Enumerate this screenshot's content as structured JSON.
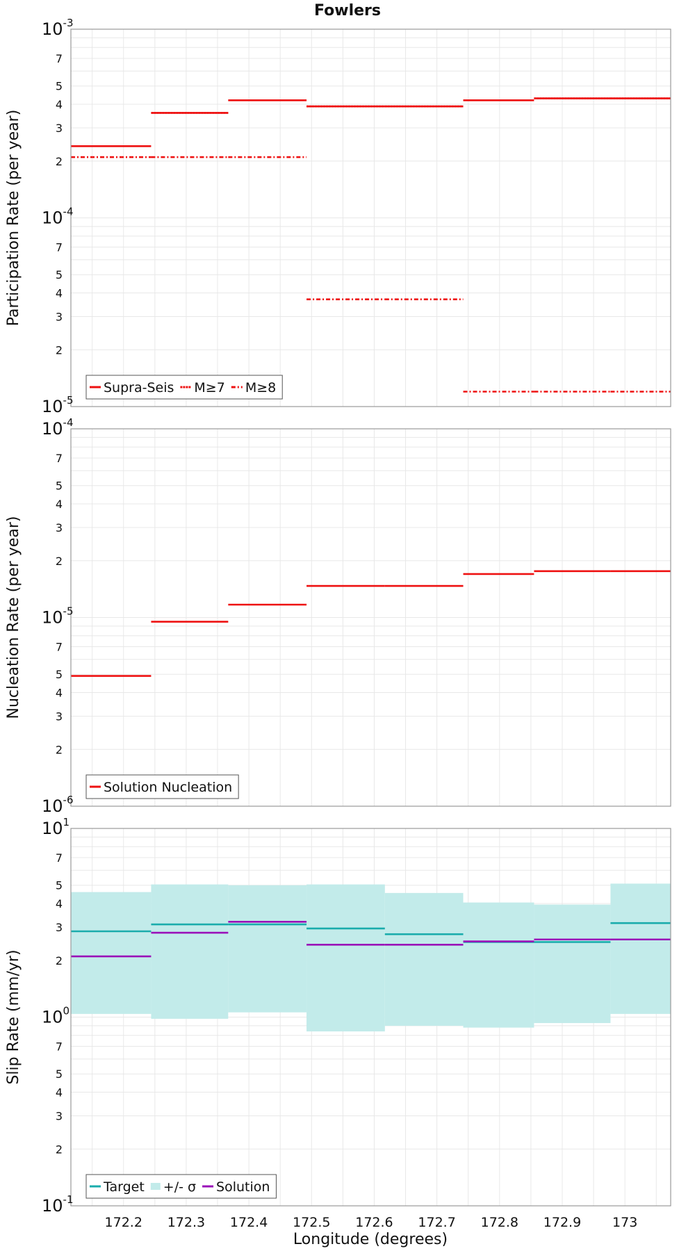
{
  "title": "Fowlers",
  "xlabel": "Longitude (degrees)",
  "x_ticks": [
    172.2,
    172.3,
    172.4,
    172.5,
    172.6,
    172.7,
    172.8,
    172.9,
    173
  ],
  "x_tick_labels": [
    "172.2",
    "172.3",
    "172.4",
    "172.5",
    "172.6",
    "172.7",
    "172.8",
    "172.9",
    "173"
  ],
  "xlim": [
    172.116,
    173.073
  ],
  "colors": {
    "red": "#ee1111",
    "teal": "#1aacac",
    "purple": "#9a10b8",
    "band": "#c2ebea",
    "grid": "#e8e8e8",
    "frame": "#999999"
  },
  "chart_data": [
    {
      "type": "line",
      "subtype": "step",
      "ylabel": "Participation Rate (per year)",
      "yscale": "log",
      "ylim": [
        1e-05,
        0.001
      ],
      "y_tick_labels": {
        "decades": [
          {
            "base": "10",
            "exp": "-5"
          },
          {
            "base": "10",
            "exp": "-4"
          },
          {
            "base": "10",
            "exp": "-3"
          }
        ],
        "minor": [
          "2",
          "3",
          "4",
          "5",
          "7"
        ]
      },
      "legend": {
        "position": "bottom-left",
        "entries": [
          {
            "label": "Supra-Seis",
            "style": "solid",
            "color": "#ee1111"
          },
          {
            "label": "M≥7",
            "style": "dotted",
            "color": "#ee1111"
          },
          {
            "label": "M≥8",
            "style": "dashdot",
            "color": "#ee1111"
          }
        ]
      },
      "series": [
        {
          "name": "Supra-Seis",
          "style": "solid",
          "color": "#ee1111",
          "segments": [
            [
              172.116,
              172.244,
              0.00024
            ],
            [
              172.244,
              172.367,
              0.00036
            ],
            [
              172.367,
              172.492,
              0.00042
            ],
            [
              172.492,
              172.617,
              0.00039
            ],
            [
              172.617,
              172.742,
              0.00039
            ],
            [
              172.742,
              172.855,
              0.00042
            ],
            [
              172.855,
              172.977,
              0.00043
            ],
            [
              172.977,
              173.073,
              0.00043
            ]
          ]
        },
        {
          "name": "M≥7",
          "style": "dotted",
          "color": "#ee1111",
          "segments": [
            [
              172.244,
              172.367,
              0.00036
            ],
            [
              172.492,
              172.617,
              0.00039
            ],
            [
              172.617,
              172.742,
              0.00039
            ],
            [
              172.855,
              172.977,
              0.00043
            ],
            [
              172.977,
              173.073,
              0.00043
            ]
          ]
        },
        {
          "name": "M≥8",
          "style": "dashdot",
          "color": "#ee1111",
          "segments": [
            [
              172.116,
              172.244,
              0.00021
            ],
            [
              172.244,
              172.367,
              0.00021
            ],
            [
              172.367,
              172.492,
              0.00021
            ],
            [
              172.492,
              172.617,
              3.7e-05
            ],
            [
              172.617,
              172.742,
              3.7e-05
            ],
            [
              172.742,
              172.855,
              1.2e-05
            ],
            [
              172.855,
              172.977,
              1.2e-05
            ],
            [
              172.977,
              173.073,
              1.2e-05
            ]
          ]
        }
      ]
    },
    {
      "type": "line",
      "subtype": "step",
      "ylabel": "Nucleation Rate (per year)",
      "yscale": "log",
      "ylim": [
        1e-06,
        0.0001
      ],
      "y_tick_labels": {
        "decades": [
          {
            "base": "10",
            "exp": "-6"
          },
          {
            "base": "10",
            "exp": "-5"
          },
          {
            "base": "10",
            "exp": "-4"
          }
        ],
        "minor": [
          "2",
          "3",
          "4",
          "5",
          "7"
        ]
      },
      "legend": {
        "position": "bottom-left",
        "entries": [
          {
            "label": "Solution Nucleation",
            "style": "solid",
            "color": "#ee1111"
          }
        ]
      },
      "series": [
        {
          "name": "Solution Nucleation",
          "style": "solid",
          "color": "#ee1111",
          "segments": [
            [
              172.116,
              172.244,
              4.9e-06
            ],
            [
              172.244,
              172.367,
              9.5e-06
            ],
            [
              172.367,
              172.492,
              1.17e-05
            ],
            [
              172.492,
              172.617,
              1.47e-05
            ],
            [
              172.617,
              172.742,
              1.47e-05
            ],
            [
              172.742,
              172.855,
              1.7e-05
            ],
            [
              172.855,
              172.977,
              1.76e-05
            ],
            [
              172.977,
              173.073,
              1.76e-05
            ]
          ]
        }
      ]
    },
    {
      "type": "line",
      "subtype": "step",
      "ylabel": "Slip Rate (mm/yr)",
      "yscale": "log",
      "ylim": [
        0.1,
        10
      ],
      "y_tick_labels": {
        "decades": [
          {
            "base": "10",
            "exp": "-1"
          },
          {
            "base": "10",
            "exp": "0"
          },
          {
            "base": "10",
            "exp": "1"
          }
        ],
        "minor": [
          "2",
          "3",
          "4",
          "5",
          "7"
        ]
      },
      "legend": {
        "position": "bottom-left",
        "entries": [
          {
            "label": "Target",
            "style": "solid",
            "color": "#1aacac"
          },
          {
            "label": "+/- σ",
            "style": "band",
            "color": "#c2ebea"
          },
          {
            "label": "Solution",
            "style": "solid",
            "color": "#9a10b8"
          }
        ]
      },
      "band": {
        "name": "+/- σ",
        "color": "#c2ebea",
        "segments": [
          [
            172.116,
            172.244,
            1.04,
            4.6
          ],
          [
            172.244,
            172.367,
            0.98,
            5.05
          ],
          [
            172.367,
            172.492,
            1.06,
            5.0
          ],
          [
            172.492,
            172.617,
            0.84,
            5.05
          ],
          [
            172.617,
            172.742,
            0.9,
            4.55
          ],
          [
            172.742,
            172.855,
            0.88,
            4.05
          ],
          [
            172.855,
            172.977,
            0.93,
            3.95
          ],
          [
            172.977,
            173.073,
            1.04,
            5.1
          ]
        ]
      },
      "series": [
        {
          "name": "Target",
          "style": "solid",
          "color": "#1aacac",
          "segments": [
            [
              172.116,
              172.244,
              2.85
            ],
            [
              172.244,
              172.367,
              3.1
            ],
            [
              172.367,
              172.492,
              3.1
            ],
            [
              172.492,
              172.617,
              2.95
            ],
            [
              172.617,
              172.742,
              2.75
            ],
            [
              172.742,
              172.855,
              2.5
            ],
            [
              172.855,
              172.977,
              2.5
            ],
            [
              172.977,
              173.073,
              3.15
            ]
          ]
        },
        {
          "name": "Solution",
          "style": "solid",
          "color": "#9a10b8",
          "segments": [
            [
              172.116,
              172.244,
              2.1
            ],
            [
              172.244,
              172.367,
              2.8
            ],
            [
              172.367,
              172.492,
              3.2
            ],
            [
              172.492,
              172.617,
              2.42
            ],
            [
              172.617,
              172.742,
              2.42
            ],
            [
              172.742,
              172.855,
              2.52
            ],
            [
              172.855,
              172.977,
              2.58
            ],
            [
              172.977,
              173.073,
              2.58
            ]
          ]
        }
      ]
    }
  ]
}
